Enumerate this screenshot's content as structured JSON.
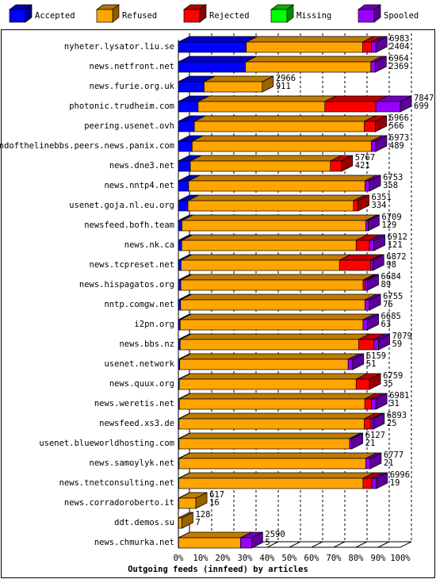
{
  "chart_data": {
    "type": "bar3d-stacked-horizontal",
    "x_label": "Outgoing feeds (innfeed) by articles",
    "xlim": [
      0,
      100
    ],
    "xticks": [
      {
        "value": 0,
        "label": "0%"
      },
      {
        "value": 10,
        "label": "10%"
      },
      {
        "value": 20,
        "label": "20%"
      },
      {
        "value": 30,
        "label": "30%"
      },
      {
        "value": 40,
        "label": "40%"
      },
      {
        "value": 50,
        "label": "50%"
      },
      {
        "value": 60,
        "label": "60%"
      },
      {
        "value": 70,
        "label": "70%"
      },
      {
        "value": 80,
        "label": "80%"
      },
      {
        "value": 90,
        "label": "90%"
      },
      {
        "value": 100,
        "label": "100%"
      }
    ],
    "grid": true,
    "categories": [
      "nyheter.lysator.liu.se",
      "news.netfront.net",
      "news.furie.org.uk",
      "photonic.trudheim.com",
      "peering.usenet.ovh",
      "endofthelinebbs.peers.news.panix.com",
      "news.dne3.net",
      "news.nntp4.net",
      "usenet.goja.nl.eu.org",
      "newsfeed.bofh.team",
      "news.nk.ca",
      "news.tcpreset.net",
      "news.hispagatos.org",
      "nntp.comgw.net",
      "i2pn.org",
      "news.bbs.nz",
      "usenet.network",
      "news.quux.org",
      "news.weretis.net",
      "newsfeed.xs3.de",
      "usenet.blueworldhosting.com",
      "news.samoylyk.net",
      "news.tnetconsulting.net",
      "news.corradoroberto.it",
      "ddt.demos.su",
      "news.chmurka.net"
    ],
    "series": [
      {
        "name": "Accepted",
        "color": "#0000ff",
        "values": [
          30.6,
          30.2,
          11.6,
          8.9,
          7.2,
          6.2,
          5.4,
          4.6,
          4.3,
          1.6,
          1.5,
          1.2,
          1.1,
          1.0,
          0.8,
          0.8,
          0.6,
          0.4,
          0.4,
          0.3,
          0.3,
          0.3,
          0.2,
          0.2,
          0.1,
          0.1
        ]
      },
      {
        "name": "Refused",
        "color": "#ffa500",
        "values": [
          52.4,
          56.5,
          26.2,
          57.1,
          76.6,
          80.7,
          63.1,
          79.5,
          74.6,
          82.9,
          78.6,
          71.4,
          82.1,
          83.1,
          82.4,
          80.4,
          75.9,
          79.7,
          83.6,
          83.5,
          76.8,
          84.1,
          83.0,
          7.7,
          1.5,
          27.9
        ]
      },
      {
        "name": "Rejected",
        "color": "#ff0000",
        "values": [
          4,
          0,
          0,
          23,
          5,
          0,
          5,
          0,
          2,
          0,
          6,
          14,
          1,
          0,
          0,
          7,
          0,
          6,
          3,
          3,
          0,
          0,
          4,
          0,
          0,
          0
        ]
      },
      {
        "name": "Missing",
        "color": "#00ff00",
        "values": [
          0,
          0,
          0,
          0,
          0,
          0,
          0,
          0,
          0,
          0,
          0,
          0,
          0,
          0,
          0,
          0,
          0,
          0,
          0,
          0,
          0,
          0,
          0,
          0,
          0,
          0
        ]
      },
      {
        "name": "Spooled",
        "color": "#9900ff",
        "values": [
          2,
          2,
          0,
          11,
          0,
          2,
          0,
          2,
          0,
          1,
          2,
          1,
          1,
          2,
          2,
          2,
          2,
          0,
          2,
          1,
          1,
          2,
          2,
          0,
          0,
          5
        ]
      }
    ],
    "bar_labels": [
      {
        "total": 6983,
        "accepted": 2404
      },
      {
        "total": 6964,
        "accepted": 2369
      },
      {
        "total": 2966,
        "accepted": 911
      },
      {
        "total": 7847,
        "accepted": 699
      },
      {
        "total": 6966,
        "accepted": 566
      },
      {
        "total": 6973,
        "accepted": 489
      },
      {
        "total": 5767,
        "accepted": 421
      },
      {
        "total": 6753,
        "accepted": 358
      },
      {
        "total": 6351,
        "accepted": 334
      },
      {
        "total": 6709,
        "accepted": 129
      },
      {
        "total": 6912,
        "accepted": 121
      },
      {
        "total": 6872,
        "accepted": 98
      },
      {
        "total": 6684,
        "accepted": 89
      },
      {
        "total": 6755,
        "accepted": 76
      },
      {
        "total": 6685,
        "accepted": 63
      },
      {
        "total": 7079,
        "accepted": 59
      },
      {
        "total": 6159,
        "accepted": 51
      },
      {
        "total": 6759,
        "accepted": 35
      },
      {
        "total": 6981,
        "accepted": 31
      },
      {
        "total": 6893,
        "accepted": 25
      },
      {
        "total": 6127,
        "accepted": 21
      },
      {
        "total": 6777,
        "accepted": 21
      },
      {
        "total": 6996,
        "accepted": 19
      },
      {
        "total": 617,
        "accepted": 16
      },
      {
        "total": 128,
        "accepted": 7
      },
      {
        "total": 2590,
        "accepted": 5
      }
    ]
  }
}
